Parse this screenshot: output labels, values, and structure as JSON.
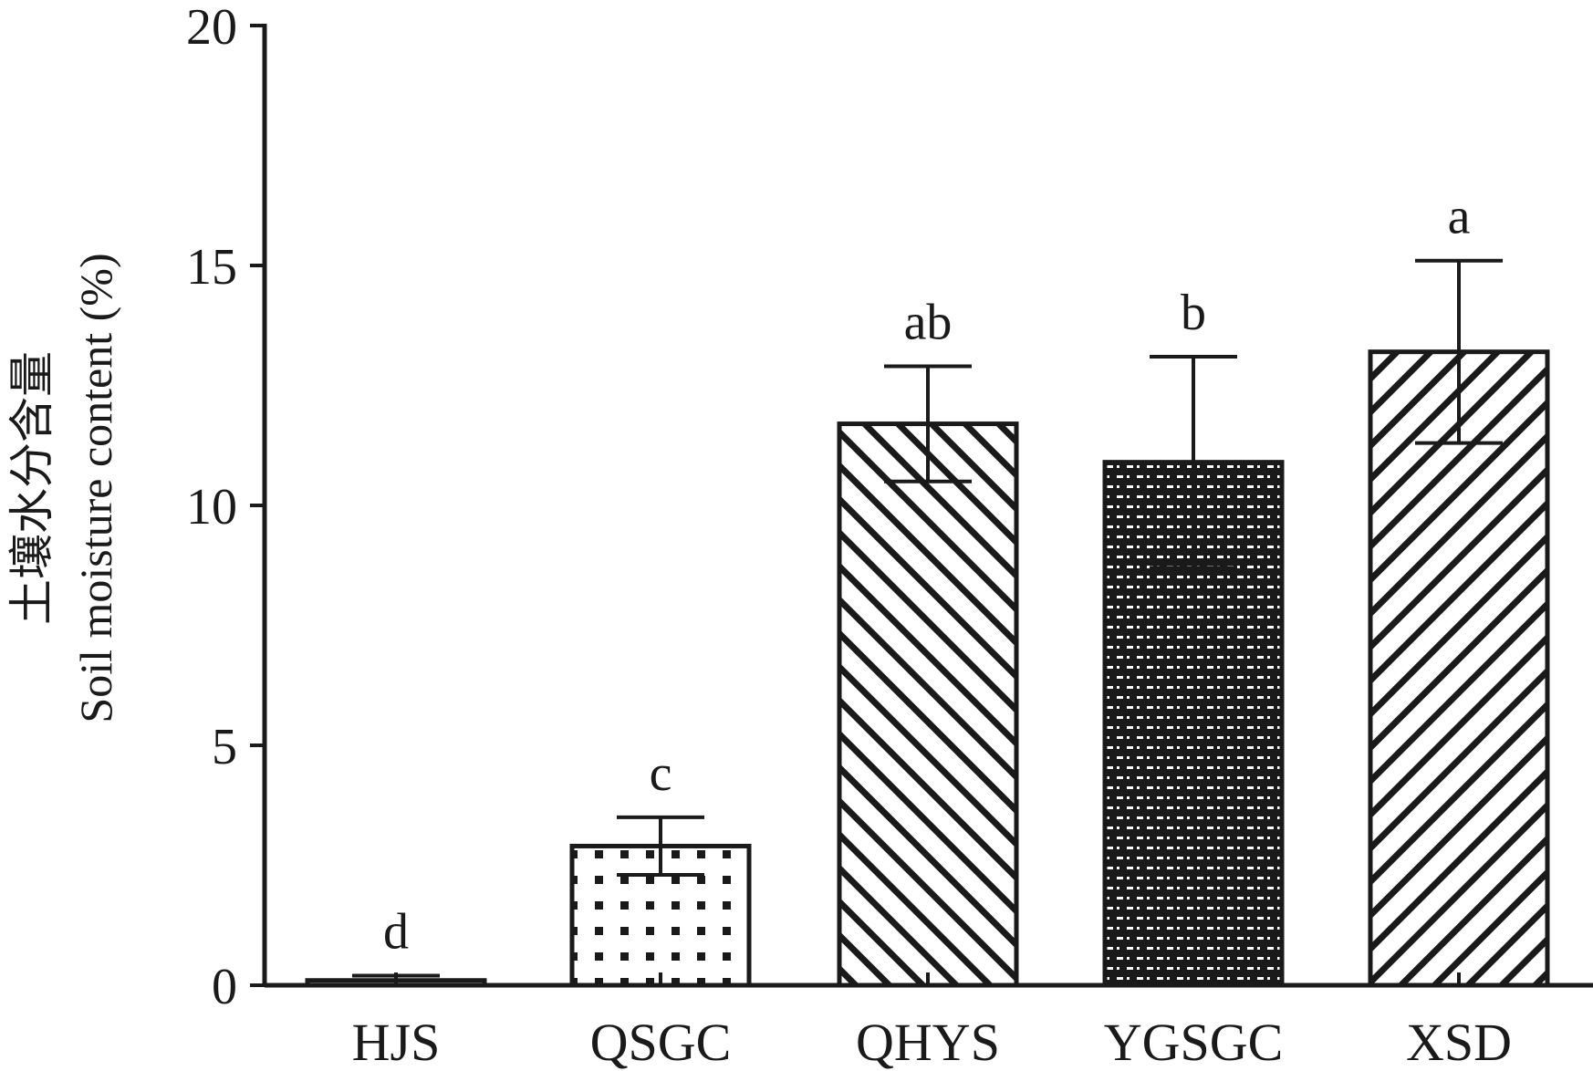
{
  "chart_data": {
    "type": "bar",
    "title": "",
    "xlabel": "",
    "ylabel_cn": "土壤水分含量",
    "ylabel_en": "Soil moisture content (%)",
    "categories": [
      "HJS",
      "QSGC",
      "QHYS",
      "YGSGC",
      "XSD"
    ],
    "values": [
      0.1,
      2.9,
      11.7,
      10.9,
      13.2
    ],
    "errors": [
      0.1,
      0.6,
      1.2,
      2.2,
      1.9
    ],
    "significance": [
      "d",
      "c",
      "ab",
      "b",
      "a"
    ],
    "patterns": [
      "dense-dots",
      "dots",
      "diag-back",
      "checker",
      "diag-fwd"
    ],
    "ylim": [
      0,
      20
    ],
    "yticks": [
      "0",
      "5",
      "10",
      "15",
      "20"
    ],
    "grid": false,
    "legend": "none",
    "colors": {
      "stroke": "#1a1a1a",
      "fill": "#ffffff"
    }
  }
}
